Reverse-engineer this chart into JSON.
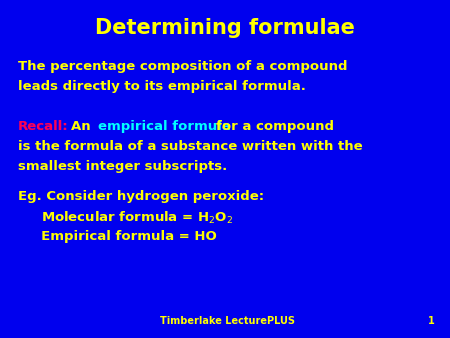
{
  "background_color": "#0000EE",
  "title": "Determining formulae",
  "title_color": "#FFFF00",
  "title_fontsize": 15,
  "footer_text": "Timberlake LecturePLUS",
  "footer_number": "1",
  "footer_color": "#FFFF00",
  "footer_fontsize": 7,
  "body_color": "#FFFF00",
  "body_fontsize": 9.5,
  "recall_color": "#FF0055",
  "empirical_color": "#00FFFF",
  "line1": "The percentage composition of a compound",
  "line2": "leads directly to its empirical formula.",
  "line3_recall": "Recall:",
  "line3_an": " An  ",
  "line3_empirical": "empirical formula",
  "line3_rest": " for a compound",
  "line4": "is the formula of a substance written with the",
  "line5": "smallest integer subscripts.",
  "line6": "Eg. Consider hydrogen peroxide:",
  "line7": "     Molecular formula = H$_2$O$_2$",
  "line8": "     Empirical formula = HO"
}
